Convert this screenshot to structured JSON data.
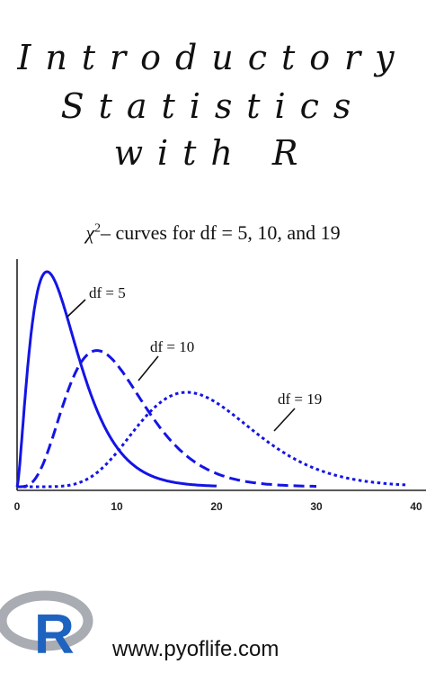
{
  "title": {
    "line1": "Introductory",
    "line2": "Statistics",
    "line3": "with R"
  },
  "chart_data": {
    "type": "line",
    "title_symbol": "χ",
    "title_superscript": "2",
    "title_rest": "– curves for df = 5, 10, and 19",
    "xlabel": "",
    "ylabel": "",
    "xlim": [
      0,
      40
    ],
    "xticks": [
      "0",
      "10",
      "20",
      "30",
      "40"
    ],
    "grid": false,
    "series": [
      {
        "name": "df = 5",
        "df": 5,
        "x_range": [
          0,
          20
        ],
        "style": "solid",
        "color": "#1414e6"
      },
      {
        "name": "df = 10",
        "df": 10,
        "x_range": [
          0,
          30
        ],
        "style": "dashed",
        "color": "#1414e6"
      },
      {
        "name": "df = 19",
        "df": 19,
        "x_range": [
          0,
          39
        ],
        "style": "dotted",
        "color": "#1414e6"
      }
    ]
  },
  "footer": {
    "url": "www.pyoflife.com",
    "logo_letter": "R"
  },
  "colors": {
    "curve": "#1414e6",
    "logo_ring": "#a9acb2",
    "logo_letter": "#1e63bf"
  }
}
